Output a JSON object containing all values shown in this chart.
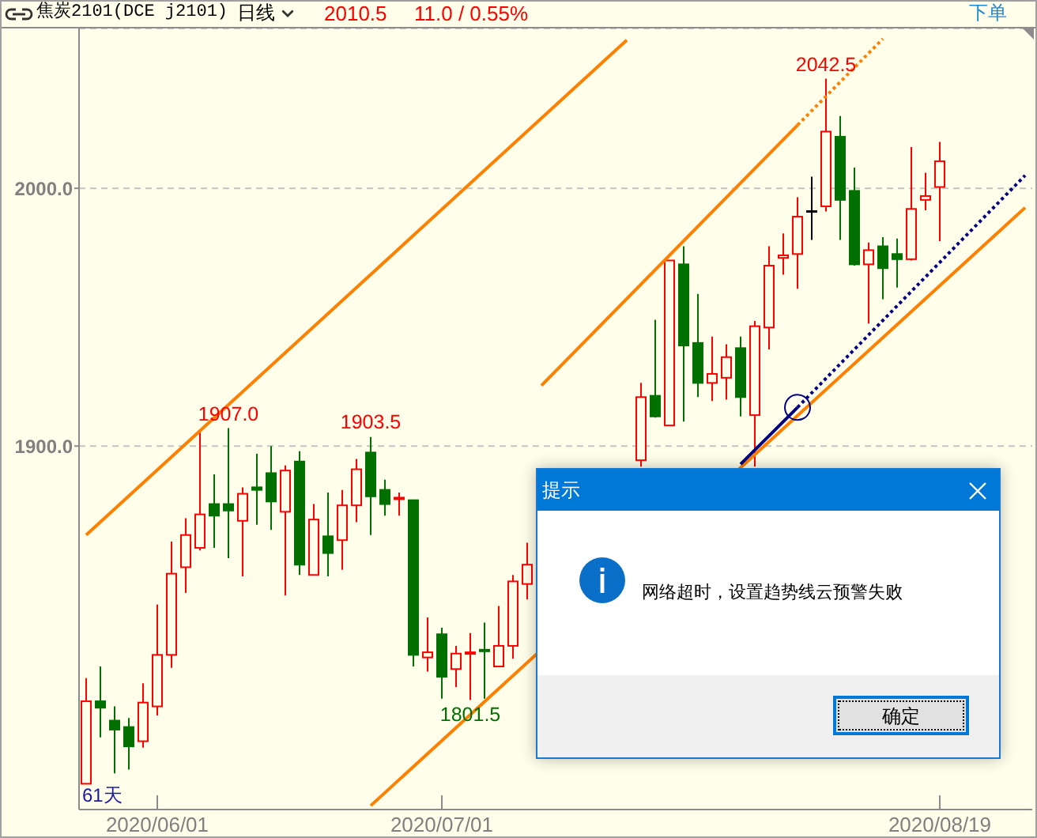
{
  "chart_data": {
    "type": "candlestick",
    "title": "焦炭2101(DCE j2101)",
    "subtitle": "日线",
    "categories": [
      null,
      null,
      null,
      null,
      null,
      "2020/06/01",
      null,
      null,
      null,
      null,
      null,
      null,
      null,
      null,
      null,
      null,
      null,
      null,
      null,
      null,
      null,
      null,
      null,
      null,
      null,
      "2020/07/01",
      null,
      null,
      null,
      null,
      null,
      null,
      null,
      null,
      null,
      null,
      null,
      null,
      null,
      null,
      null,
      null,
      null,
      null,
      null,
      null,
      null,
      null,
      null,
      null,
      null,
      null,
      null,
      null,
      null,
      null,
      null,
      null,
      null,
      null,
      "2020/08/19",
      null,
      null,
      null,
      null,
      null,
      null
    ],
    "ohlc": [
      [
        1769,
        1810,
        1769,
        1801
      ],
      [
        1801,
        1814.5,
        1787,
        1798.5
      ],
      [
        1793.5,
        1799,
        1773,
        1790
      ],
      [
        1791,
        1794.5,
        1774.5,
        1783.5
      ],
      [
        1785.5,
        1808,
        1783,
        1800.5
      ],
      [
        1799,
        1838.5,
        1795.5,
        1819
      ],
      [
        1819,
        1863,
        1814,
        1850.5
      ],
      [
        1853,
        1872,
        1843,
        1865.5
      ],
      [
        1860.5,
        1905.5,
        1859.5,
        1873.5
      ],
      [
        1877.5,
        1889,
        1860.5,
        1873
      ],
      [
        1877.5,
        1907,
        1856.5,
        1875
      ],
      [
        1871,
        1884,
        1849.5,
        1881.5
      ],
      [
        1884,
        1897,
        1869.5,
        1883
      ],
      [
        1889.5,
        1900,
        1867.5,
        1878.5
      ],
      [
        1874.5,
        1892.5,
        1842,
        1890.5
      ],
      [
        1894,
        1898,
        1850,
        1854
      ],
      [
        1850,
        1877.5,
        1850,
        1871.5
      ],
      [
        1865,
        1882,
        1849.5,
        1858.5
      ],
      [
        1863.5,
        1883,
        1852,
        1877
      ],
      [
        1877,
        1895,
        1870.5,
        1891
      ],
      [
        1897.5,
        1903.5,
        1865.5,
        1880.5
      ],
      [
        1883,
        1887,
        1873,
        1877.5
      ],
      [
        1879.5,
        1882,
        1873,
        1880
      ],
      [
        1879,
        1879,
        1814.5,
        1819
      ],
      [
        1818,
        1833.5,
        1812.5,
        1820
      ],
      [
        1827,
        1829.5,
        1802,
        1810.5
      ],
      [
        1813.5,
        1822.5,
        1806.5,
        1819.5
      ],
      [
        1819.5,
        1827.5,
        1801.5,
        1820
      ],
      [
        1821,
        1831.5,
        1802,
        1820.5
      ],
      [
        1814.5,
        1838,
        1814.5,
        1822.5
      ],
      [
        1822.5,
        1850,
        1817.5,
        1847.5
      ],
      [
        1846.5,
        1862.5,
        1840.5,
        1854
      ],
      null,
      null,
      null,
      null,
      null,
      null,
      null,
      [
        1894.5,
        1924.5,
        1892,
        1919
      ],
      [
        1919.5,
        1949,
        1911,
        1911.5
      ],
      [
        1908,
        1972,
        1908,
        1972
      ],
      [
        1970.5,
        1977.5,
        1909.5,
        1939
      ],
      [
        1940,
        1959,
        1919,
        1924.5
      ],
      [
        1924.5,
        1942.5,
        1917.5,
        1928
      ],
      [
        1926.5,
        1939.5,
        1918,
        1934.5
      ],
      [
        1938,
        1942.5,
        1911.5,
        1919
      ],
      [
        1912,
        1948.5,
        1892,
        1946.5
      ],
      [
        1946,
        1977.5,
        1937.5,
        1970
      ],
      [
        1973,
        1982.5,
        1966.5,
        1974
      ],
      [
        1974.5,
        1996.5,
        1961,
        1989
      ],
      [
        1991,
        2004.5,
        1980,
        1991
      ],
      [
        1993,
        2042.5,
        1991,
        2022
      ],
      [
        2020,
        2028,
        1980,
        1995.5
      ],
      [
        1999,
        2008,
        1970,
        1970.5
      ],
      [
        1970.5,
        1979,
        1947.5,
        1976
      ],
      [
        1977.5,
        1981,
        1957,
        1969
      ],
      [
        1974.5,
        1980.5,
        1961.5,
        1972.5
      ],
      [
        1972.5,
        2016,
        1972,
        1992
      ],
      [
        1995.5,
        2006,
        1991.5,
        1997
      ],
      [
        2000.5,
        2018,
        1979.5,
        2010.5
      ],
      null,
      null,
      null,
      null,
      null,
      null
    ],
    "colors": [
      "#ff0000",
      "#007000",
      "#007000",
      "#007000",
      "#ff0000",
      "#ff0000",
      "#ff0000",
      "#ff0000",
      "#ff0000",
      "#007000",
      "#007000",
      "#ff0000",
      "#007000",
      "#007000",
      "#ff0000",
      "#007000",
      "#ff0000",
      "#007000",
      "#ff0000",
      "#ff0000",
      "#007000",
      "#007000",
      "#ff0000",
      "#007000",
      "#ff0000",
      "#007000",
      "#ff0000",
      "#ff0000",
      "#007000",
      "#ff0000",
      "#ff0000",
      "#ff0000",
      null,
      null,
      null,
      null,
      null,
      null,
      null,
      "#ff0000",
      "#007000",
      "#ff0000",
      "#007000",
      "#007000",
      "#ff0000",
      "#ff0000",
      "#007000",
      "#ff0000",
      "#ff0000",
      "#ff0000",
      "#ff0000",
      "#000000",
      "#ff0000",
      "#007000",
      "#007000",
      "#ff0000",
      "#007000",
      "#007000",
      "#ff0000",
      "#ff0000",
      "#ff0000",
      null,
      null,
      null,
      null,
      null,
      null
    ],
    "series": [
      {
        "type": "line",
        "color": "#ff8000",
        "line_style": "solid",
        "marker": "none",
        "values": [
          1865.5,
          null,
          null,
          null,
          null,
          null,
          null,
          null,
          null,
          null,
          null,
          null,
          null,
          null,
          null,
          null,
          null,
          null,
          null,
          null,
          null,
          null,
          null,
          null,
          null,
          null,
          null,
          null,
          null,
          null,
          null,
          null,
          null,
          null,
          null,
          null,
          null,
          null,
          2057.5,
          null,
          null,
          null,
          null,
          null,
          null,
          null,
          null,
          null,
          null,
          null,
          null,
          null,
          null,
          null,
          null,
          null,
          null,
          null,
          null,
          null,
          null,
          null,
          null,
          null,
          null,
          null,
          null
        ]
      },
      {
        "type": "line",
        "color": "#ff8000",
        "line_style": "solid",
        "marker": "none",
        "values": [
          null,
          null,
          null,
          null,
          null,
          null,
          null,
          null,
          null,
          null,
          null,
          null,
          null,
          null,
          null,
          null,
          null,
          null,
          null,
          null,
          null,
          null,
          null,
          null,
          null,
          null,
          null,
          null,
          null,
          null,
          null,
          null,
          1923.5,
          null,
          null,
          null,
          null,
          null,
          null,
          null,
          null,
          null,
          null,
          null,
          null,
          null,
          null,
          null,
          null,
          null,
          2024.5,
          null,
          null,
          null,
          null,
          null,
          null,
          null,
          null,
          null,
          null,
          null,
          null,
          null,
          null,
          null,
          null
        ]
      },
      {
        "type": "line",
        "color": "#ff8000",
        "line_style": "dotted",
        "marker": "none",
        "values": [
          null,
          null,
          null,
          null,
          null,
          null,
          null,
          null,
          null,
          null,
          null,
          null,
          null,
          null,
          null,
          null,
          null,
          null,
          null,
          null,
          null,
          null,
          null,
          null,
          null,
          null,
          null,
          null,
          null,
          null,
          null,
          null,
          null,
          null,
          null,
          null,
          null,
          null,
          null,
          null,
          null,
          null,
          null,
          null,
          null,
          null,
          null,
          null,
          null,
          null,
          2024.5,
          null,
          null,
          null,
          null,
          null,
          2058,
          null,
          null,
          null,
          null,
          null,
          null,
          null,
          null,
          null,
          null
        ]
      },
      {
        "type": "line",
        "color": "#ff8000",
        "line_style": "solid",
        "marker": "none",
        "values": [
          null,
          null,
          null,
          null,
          null,
          null,
          null,
          null,
          null,
          null,
          null,
          null,
          null,
          null,
          null,
          null,
          null,
          null,
          null,
          null,
          1760.5,
          null,
          null,
          null,
          null,
          null,
          null,
          null,
          null,
          null,
          null,
          null,
          null,
          null,
          null,
          null,
          null,
          null,
          null,
          null,
          null,
          null,
          null,
          null,
          null,
          null,
          null,
          null,
          null,
          null,
          null,
          null,
          null,
          null,
          null,
          null,
          null,
          null,
          null,
          null,
          null,
          null,
          null,
          null,
          null,
          null,
          1992.5
        ]
      },
      {
        "type": "line",
        "color": "#000080",
        "line_style": "solid",
        "marker": "none",
        "values": [
          null,
          null,
          null,
          null,
          null,
          null,
          null,
          null,
          null,
          null,
          null,
          null,
          null,
          null,
          null,
          null,
          null,
          null,
          null,
          null,
          null,
          null,
          null,
          null,
          null,
          null,
          null,
          null,
          null,
          null,
          null,
          null,
          null,
          null,
          null,
          null,
          null,
          null,
          null,
          null,
          null,
          null,
          null,
          null,
          null,
          null,
          1893,
          null,
          null,
          null,
          1915,
          null,
          null,
          null,
          null,
          null,
          null,
          null,
          null,
          null,
          null,
          null,
          null,
          null,
          null,
          null,
          null
        ]
      },
      {
        "type": "line",
        "color": "#000080",
        "line_style": "dotted",
        "marker": "none",
        "values": [
          null,
          null,
          null,
          null,
          null,
          null,
          null,
          null,
          null,
          null,
          null,
          null,
          null,
          null,
          null,
          null,
          null,
          null,
          null,
          null,
          null,
          null,
          null,
          null,
          null,
          null,
          null,
          null,
          null,
          null,
          null,
          null,
          null,
          null,
          null,
          null,
          null,
          null,
          null,
          null,
          null,
          null,
          null,
          null,
          null,
          null,
          null,
          null,
          null,
          null,
          1915,
          null,
          null,
          null,
          null,
          null,
          null,
          null,
          null,
          null,
          null,
          null,
          null,
          null,
          null,
          null,
          2005
        ]
      },
      {
        "type": "scatter",
        "color": "#000080",
        "marker": "circle",
        "values": [
          null,
          null,
          null,
          null,
          null,
          null,
          null,
          null,
          null,
          null,
          null,
          null,
          null,
          null,
          null,
          null,
          null,
          null,
          null,
          null,
          null,
          null,
          null,
          null,
          null,
          null,
          null,
          null,
          null,
          null,
          null,
          null,
          null,
          null,
          null,
          null,
          null,
          null,
          null,
          null,
          null,
          null,
          null,
          null,
          null,
          null,
          null,
          null,
          null,
          null,
          1915,
          null,
          null,
          null,
          null,
          null,
          null,
          null,
          null,
          null,
          null,
          null,
          null,
          null,
          null,
          null,
          null
        ]
      }
    ],
    "ylim": [
      1759,
      2062
    ],
    "yticks": [
      {
        "value": 1900,
        "label": "1900.0"
      },
      {
        "value": 2000,
        "label": "2000.0"
      }
    ],
    "grid": "y",
    "annotations": [
      "2010.5",
      "11.0 / 0.55%",
      "下单",
      "61天",
      "提示",
      "网络超时，设置趋势线云预警失败",
      "确定",
      {
        "text": "1907.0",
        "y": 1907
      },
      {
        "text": "1903.5",
        "y": 1903.5
      },
      {
        "text": "2042.5",
        "y": 2042.5
      },
      {
        "text": "1801.5",
        "y": 1801.5
      }
    ]
  }
}
